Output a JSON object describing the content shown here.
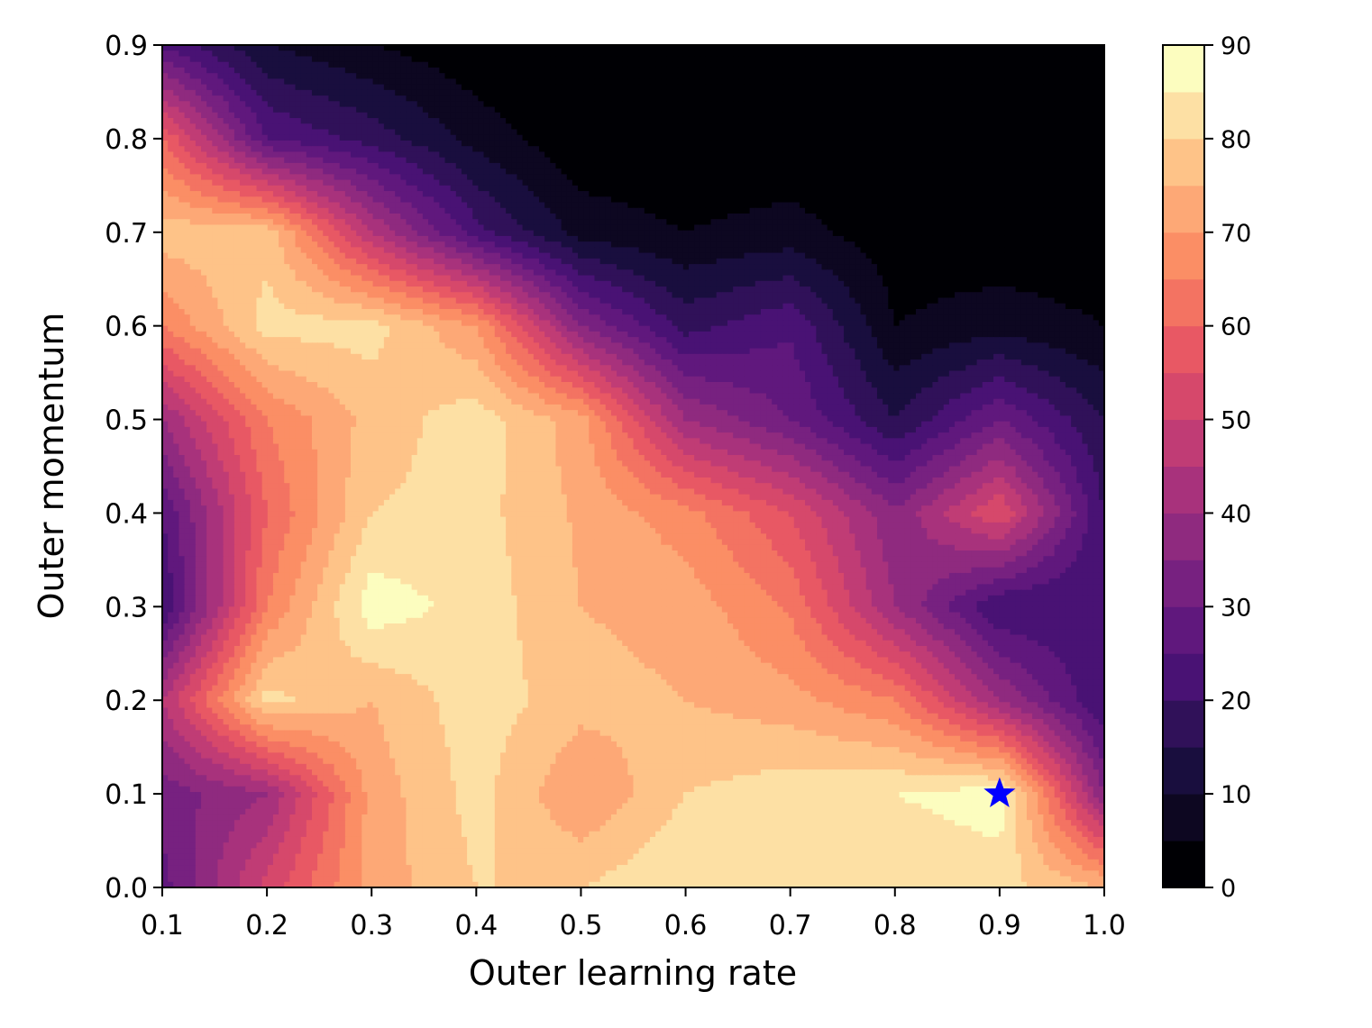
{
  "chart_data": {
    "type": "heatmap",
    "subtype": "filled-contour",
    "title": "",
    "xlabel": "Outer learning rate",
    "ylabel": "Outer momentum",
    "x": [
      0.1,
      0.2,
      0.3,
      0.4,
      0.5,
      0.6,
      0.7,
      0.8,
      0.9,
      1.0
    ],
    "y": [
      0.0,
      0.1,
      0.2,
      0.3,
      0.4,
      0.5,
      0.6,
      0.7,
      0.8,
      0.9
    ],
    "xlim": [
      0.1,
      1.0
    ],
    "ylim": [
      0.0,
      0.9
    ],
    "x_ticks": [
      "0.1",
      "0.2",
      "0.3",
      "0.4",
      "0.5",
      "0.6",
      "0.7",
      "0.8",
      "0.9",
      "1.0"
    ],
    "y_ticks": [
      "0.0",
      "0.1",
      "0.2",
      "0.3",
      "0.4",
      "0.5",
      "0.6",
      "0.7",
      "0.8",
      "0.9"
    ],
    "z_rows_by_y": [
      [
        28,
        52,
        72,
        80,
        80,
        85,
        82,
        80,
        82,
        75
      ],
      [
        32,
        40,
        72,
        82,
        70,
        80,
        83,
        85,
        88,
        35
      ],
      [
        45,
        82,
        75,
        83,
        77,
        75,
        72,
        65,
        40,
        20
      ],
      [
        20,
        65,
        88,
        83,
        75,
        73,
        64,
        40,
        20,
        20
      ],
      [
        25,
        60,
        80,
        82,
        74,
        67,
        55,
        36,
        55,
        20
      ],
      [
        40,
        65,
        77,
        83,
        72,
        40,
        30,
        15,
        30,
        15
      ],
      [
        65,
        82,
        82,
        70,
        35,
        18,
        24,
        5,
        8,
        5
      ],
      [
        78,
        78,
        45,
        22,
        8,
        5,
        7,
        2,
        1,
        1
      ],
      [
        60,
        25,
        18,
        8,
        1,
        1,
        1,
        1,
        1,
        1
      ],
      [
        24,
        10,
        5,
        1,
        1,
        1,
        1,
        1,
        1,
        1
      ]
    ],
    "colormap": "magma",
    "levels": [
      0,
      5,
      10,
      15,
      20,
      25,
      30,
      35,
      40,
      45,
      50,
      55,
      60,
      65,
      70,
      75,
      80,
      85,
      90
    ],
    "colorbar_ticks": [
      "0",
      "10",
      "20",
      "30",
      "40",
      "50",
      "60",
      "70",
      "80",
      "90"
    ],
    "marker": {
      "shape": "star",
      "x": 0.9,
      "y": 0.1,
      "color": "#0000ff"
    },
    "grid": false,
    "legend": "none"
  }
}
